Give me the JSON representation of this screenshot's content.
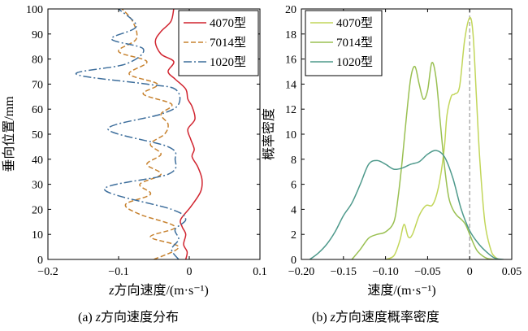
{
  "charts": [
    {
      "type": "line",
      "title": "",
      "caption_prefix": "(a) ",
      "caption_var": "z",
      "caption_rest": "方向速度分布",
      "xlabel_var": "z",
      "xlabel_rest": "方向速度/(m·s⁻¹)",
      "ylabel": "垂向位置/mm",
      "xlim": [
        -0.2,
        0.1
      ],
      "ylim": [
        0,
        100
      ],
      "xticks": [
        -0.2,
        -0.1,
        0,
        0.1
      ],
      "xtick_labels": [
        "−0.2",
        "−0.1",
        "0",
        "0.1"
      ],
      "yticks": [
        0,
        10,
        20,
        30,
        40,
        50,
        60,
        70,
        80,
        90,
        100
      ],
      "ytick_labels": [
        "0",
        "10",
        "20",
        "30",
        "40",
        "50",
        "60",
        "70",
        "80",
        "90",
        "100"
      ],
      "legend_position": "top-right",
      "series": [
        {
          "name": "4070型",
          "color": "#d1242f",
          "dash": "",
          "x": [
            -0.005,
            -0.003,
            -0.008,
            -0.005,
            -0.01,
            -0.012,
            0.002,
            0.016,
            0.018,
            0.012,
            0.004,
            0.007,
            0.002,
            -0.002,
            0.008,
            0.004,
            -0.002,
            -0.005,
            -0.02,
            -0.03,
            -0.022,
            -0.04,
            -0.048,
            -0.04,
            -0.026,
            -0.022
          ],
          "y": [
            0,
            3,
            6,
            10,
            13,
            16,
            21,
            27,
            32,
            37,
            41,
            44,
            48,
            52,
            56,
            61,
            64,
            68,
            72,
            75,
            79,
            82,
            87,
            91,
            95,
            100
          ]
        },
        {
          "name": "7014型",
          "color": "#c7822f",
          "dash": "6 3",
          "x": [
            -0.05,
            -0.015,
            -0.055,
            -0.02,
            -0.07,
            -0.09,
            -0.055,
            -0.07,
            -0.04,
            -0.06,
            -0.04,
            -0.055,
            -0.035,
            -0.03,
            -0.04,
            -0.025,
            -0.065,
            -0.045,
            -0.085,
            -0.06,
            -0.1,
            -0.075,
            -0.08,
            -0.095
          ],
          "y": [
            0,
            5,
            9,
            13,
            18,
            22,
            26,
            30,
            34,
            38,
            42,
            46,
            50,
            54,
            58,
            62,
            66,
            70,
            74,
            79,
            83,
            88,
            95,
            100
          ]
        },
        {
          "name": "1020型",
          "color": "#3d6e9c",
          "dash": "10 3 2 3",
          "x": [
            -0.015,
            -0.025,
            -0.015,
            -0.02,
            -0.005,
            -0.025,
            -0.12,
            -0.03,
            -0.02,
            -0.03,
            -0.115,
            -0.04,
            -0.015,
            -0.02,
            -0.06,
            -0.16,
            -0.09,
            -0.065,
            -0.11,
            -0.075,
            -0.1
          ],
          "y": [
            0,
            4,
            8,
            12,
            16,
            20,
            28,
            34,
            40,
            45,
            52,
            58,
            62,
            68,
            70,
            74,
            78,
            84,
            88,
            93,
            100
          ]
        }
      ]
    },
    {
      "type": "line",
      "title": "",
      "caption_prefix": "(b) ",
      "caption_var": "z",
      "caption_rest": "方向速度概率密度",
      "xlabel_rest": "速度/(m·s⁻¹)",
      "ylabel": "概率密度",
      "xlim": [
        -0.2,
        0.05
      ],
      "ylim": [
        0,
        20
      ],
      "xticks": [
        -0.2,
        -0.15,
        -0.1,
        -0.05,
        0,
        0.05
      ],
      "xtick_labels": [
        "−0.20",
        "−0.15",
        "−0.10",
        "−0.05",
        "0",
        "0.05"
      ],
      "yticks": [
        0,
        2,
        4,
        6,
        8,
        10,
        12,
        14,
        16,
        18,
        20
      ],
      "ytick_labels": [
        "0",
        "2",
        "4",
        "6",
        "8",
        "10",
        "12",
        "14",
        "16",
        "18",
        "20"
      ],
      "reference_line_x": 0,
      "legend_position": "top-right",
      "series": [
        {
          "name": "4070型",
          "color": "#c2d65a",
          "dash": "",
          "x": [
            -0.1,
            -0.09,
            -0.083,
            -0.078,
            -0.073,
            -0.068,
            -0.06,
            -0.052,
            -0.045,
            -0.04,
            -0.035,
            -0.03,
            -0.027,
            -0.022,
            -0.018,
            -0.012,
            -0.006,
            0,
            0.004,
            0.008,
            0.012,
            0.018,
            0.025,
            0.03,
            0.035
          ],
          "y": [
            0,
            0.3,
            1.5,
            2.8,
            1.8,
            2.0,
            3.5,
            4.3,
            4.3,
            5.0,
            6.5,
            9.0,
            11.5,
            13.0,
            13.2,
            13.8,
            17.5,
            19.3,
            18.0,
            13.0,
            8.0,
            3.0,
            0.8,
            0.2,
            0
          ]
        },
        {
          "name": "7014型",
          "color": "#9ac052",
          "dash": "",
          "x": [
            -0.14,
            -0.13,
            -0.12,
            -0.11,
            -0.1,
            -0.09,
            -0.085,
            -0.08,
            -0.075,
            -0.07,
            -0.065,
            -0.06,
            -0.055,
            -0.05,
            -0.045,
            -0.04,
            -0.035,
            -0.03,
            -0.025,
            -0.02,
            -0.015,
            -0.01,
            -0.005,
            0,
            0.005,
            0.01,
            0.02,
            0.03
          ],
          "y": [
            0,
            0.8,
            1.7,
            2.0,
            2.2,
            3.0,
            5.0,
            8.0,
            11.5,
            14.5,
            15.4,
            14.0,
            12.8,
            13.5,
            15.7,
            14.5,
            11.0,
            7.5,
            5.0,
            4.0,
            3.5,
            3.2,
            2.8,
            2.0,
            1.2,
            0.6,
            0.1,
            0
          ]
        },
        {
          "name": "1020型",
          "color": "#4f9a8c",
          "dash": "",
          "x": [
            -0.19,
            -0.18,
            -0.17,
            -0.16,
            -0.15,
            -0.14,
            -0.13,
            -0.12,
            -0.11,
            -0.1,
            -0.09,
            -0.08,
            -0.07,
            -0.06,
            -0.05,
            -0.04,
            -0.03,
            -0.02,
            -0.01,
            0,
            0.01,
            0.02,
            0.03,
            0.04
          ],
          "y": [
            0,
            0.5,
            1.2,
            2.2,
            3.5,
            4.5,
            6.0,
            7.6,
            7.9,
            7.6,
            7.2,
            7.3,
            7.6,
            7.8,
            8.4,
            8.7,
            8.2,
            6.5,
            4.0,
            2.3,
            1.3,
            0.6,
            0.1,
            0
          ]
        }
      ]
    }
  ]
}
